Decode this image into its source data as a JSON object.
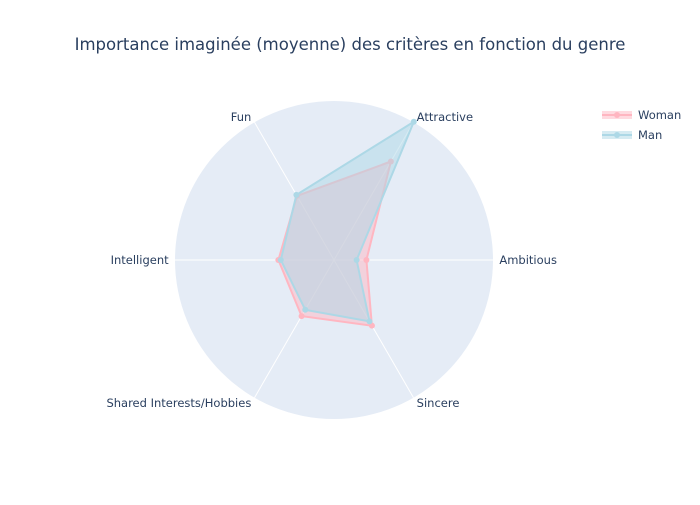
{
  "chart_data": {
    "type": "radar",
    "title": "Importance imaginée (moyenne) des critères en fonction du genre",
    "axes": [
      "Ambitious",
      "Attractive",
      "Fun",
      "Intelligent",
      "Shared Interests/Hobbies",
      "Sincere"
    ],
    "range": [
      0,
      26
    ],
    "grid": true,
    "legend_position": "top-right",
    "series": [
      {
        "name": "Woman",
        "values": [
          5.3,
          18.6,
          12.1,
          9.1,
          10.6,
          12.4
        ],
        "color": "#ffb6c1"
      },
      {
        "name": "Man",
        "values": [
          3.7,
          26.1,
          12.3,
          8.7,
          9.4,
          11.6
        ],
        "color": "#add8e6"
      }
    ]
  }
}
